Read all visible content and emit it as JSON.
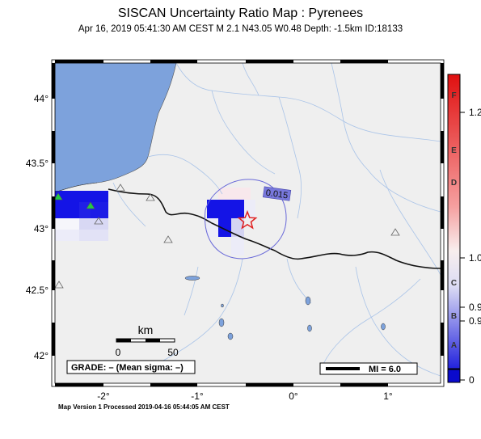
{
  "title": "SISCAN Uncertainty Ratio Map : Pyrenees",
  "subtitle": "Apr 16, 2019 05:41:30 AM CEST   M 2.1   N43.05 W0.48   Depth: -1.5km   ID:18133",
  "footer": "Map Version 1 Processed 2019-04-16 05:44:05 AM CEST",
  "map": {
    "lat_ticks": [
      "44°",
      "43.5°",
      "43°",
      "42.5°",
      "42°"
    ],
    "lon_ticks": [
      "-2°",
      "-1°",
      "0°",
      "1°"
    ],
    "contour_label": "0.015",
    "scale_bar": {
      "unit": "km",
      "ticks": [
        "0",
        "50"
      ]
    },
    "grade_text": "GRADE: – (Mean sigma: –)",
    "mi_text": "MI = 6.0",
    "epicenter_icon": "star-icon",
    "station_icon": "triangle-icon",
    "colors": {
      "ocean": "#7da2dc",
      "land": "#efefef",
      "high": "#1414e6",
      "epicenter": "#e02020"
    }
  },
  "colorbar": {
    "grades": [
      "F",
      "E",
      "D",
      "C",
      "B",
      "A"
    ],
    "values": [
      "1.2",
      "1.0",
      "0.9",
      "0.9",
      "0"
    ]
  }
}
